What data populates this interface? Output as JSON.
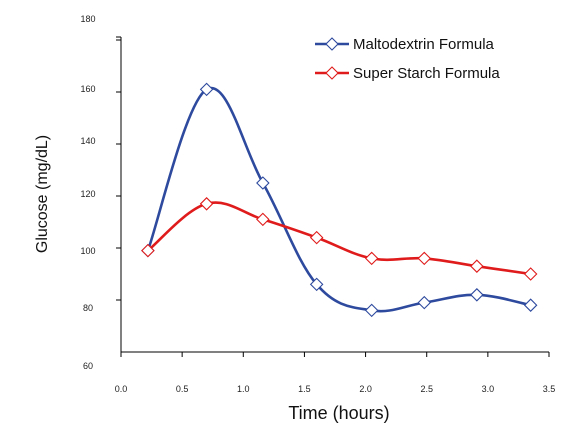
{
  "chart_data": {
    "type": "line",
    "title": "",
    "xlabel": "Time (hours)",
    "ylabel": "Glucose (mg/dL)",
    "xlim": [
      0.0,
      3.5
    ],
    "ylim": [
      60,
      180
    ],
    "x_ticks": [
      "0.0",
      "0.5",
      "1.0",
      "1.5",
      "2.0",
      "2.5",
      "3.0",
      "3.5"
    ],
    "y_ticks": [
      "60",
      "80",
      "100",
      "120",
      "140",
      "160",
      "180"
    ],
    "grid": false,
    "legend_position": "top-right",
    "marker": "open-diamond",
    "series": [
      {
        "name": "Maltodextrin Formula",
        "color": "#2e4a9e",
        "x": [
          0.22,
          0.7,
          1.16,
          1.6,
          2.05,
          2.48,
          2.91,
          3.35
        ],
        "values": [
          99,
          161,
          125,
          86,
          76,
          79,
          82,
          78
        ]
      },
      {
        "name": "Super Starch Formula",
        "color": "#e01b1b",
        "x": [
          0.22,
          0.7,
          1.16,
          1.6,
          2.05,
          2.48,
          2.91,
          3.35
        ],
        "values": [
          99,
          117,
          111,
          104,
          96,
          96,
          93,
          90
        ]
      }
    ]
  }
}
